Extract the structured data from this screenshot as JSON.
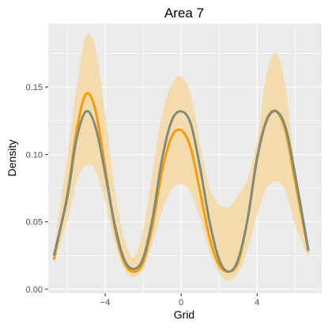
{
  "chart_data": {
    "type": "line",
    "title": "Area 7",
    "xlabel": "Grid",
    "ylabel": "Density",
    "xlim": [
      -7.0,
      7.4
    ],
    "ylim": [
      -0.003,
      0.197
    ],
    "x_ticks": [
      -4,
      0,
      4
    ],
    "x_tick_labels": [
      "−4",
      "0",
      "4"
    ],
    "y_ticks": [
      0.0,
      0.05,
      0.1,
      0.15
    ],
    "y_tick_labels": [
      "0.00",
      "0.05",
      "0.10",
      "0.15"
    ],
    "grid": true,
    "legend": "none",
    "colors": {
      "panel": "#ebebeb",
      "grid": "#ffffff",
      "band": "#f5d9a6",
      "estimate": "#ff9900",
      "truth": "#7f8c7c",
      "tick": "#333333"
    },
    "series": [
      {
        "role": "band",
        "x": [
          -6.7,
          -6.0,
          -5.5,
          -5.0,
          -4.5,
          -4.0,
          -3.5,
          -3.0,
          -2.5,
          -2.0,
          -1.5,
          -1.0,
          -0.5,
          0.0,
          0.5,
          1.0,
          1.5,
          2.0,
          2.5,
          3.0,
          3.5,
          4.0,
          4.5,
          5.0,
          5.5,
          6.0,
          6.7
        ],
        "lower": [
          0.019,
          0.05,
          0.08,
          0.092,
          0.088,
          0.065,
          0.035,
          0.015,
          0.009,
          0.015,
          0.035,
          0.058,
          0.074,
          0.078,
          0.072,
          0.052,
          0.028,
          0.012,
          0.006,
          0.012,
          0.03,
          0.055,
          0.075,
          0.08,
          0.073,
          0.048,
          0.023
        ],
        "upper": [
          0.03,
          0.098,
          0.15,
          0.188,
          0.178,
          0.13,
          0.075,
          0.038,
          0.024,
          0.044,
          0.087,
          0.13,
          0.152,
          0.158,
          0.145,
          0.108,
          0.075,
          0.063,
          0.061,
          0.07,
          0.082,
          0.11,
          0.16,
          0.175,
          0.15,
          0.09,
          0.035
        ]
      },
      {
        "role": "estimate",
        "x": [
          -6.7,
          -6.0,
          -5.5,
          -5.0,
          -4.5,
          -4.0,
          -3.5,
          -3.0,
          -2.5,
          -2.0,
          -1.5,
          -1.0,
          -0.5,
          0.0,
          0.5,
          1.0,
          1.5,
          2.0,
          2.5,
          3.0,
          3.5,
          4.0,
          4.5,
          5.0,
          5.5,
          6.0,
          6.7
        ],
        "y": [
          0.022,
          0.07,
          0.118,
          0.145,
          0.132,
          0.09,
          0.046,
          0.02,
          0.013,
          0.02,
          0.048,
          0.088,
          0.113,
          0.118,
          0.105,
          0.072,
          0.038,
          0.018,
          0.013,
          0.02,
          0.052,
          0.098,
          0.126,
          0.132,
          0.117,
          0.08,
          0.028
        ]
      },
      {
        "role": "truth",
        "x": [
          -6.7,
          -6.0,
          -5.5,
          -5.0,
          -4.5,
          -4.0,
          -3.5,
          -3.0,
          -2.5,
          -2.0,
          -1.5,
          -1.0,
          -0.5,
          0.0,
          0.5,
          1.0,
          1.5,
          2.0,
          2.5,
          3.0,
          3.5,
          4.0,
          4.5,
          5.0,
          5.5,
          6.0,
          6.7
        ],
        "y": [
          0.025,
          0.068,
          0.112,
          0.132,
          0.12,
          0.086,
          0.048,
          0.022,
          0.015,
          0.023,
          0.053,
          0.097,
          0.125,
          0.132,
          0.123,
          0.09,
          0.05,
          0.022,
          0.013,
          0.022,
          0.052,
          0.097,
          0.125,
          0.132,
          0.12,
          0.085,
          0.029
        ]
      }
    ]
  }
}
